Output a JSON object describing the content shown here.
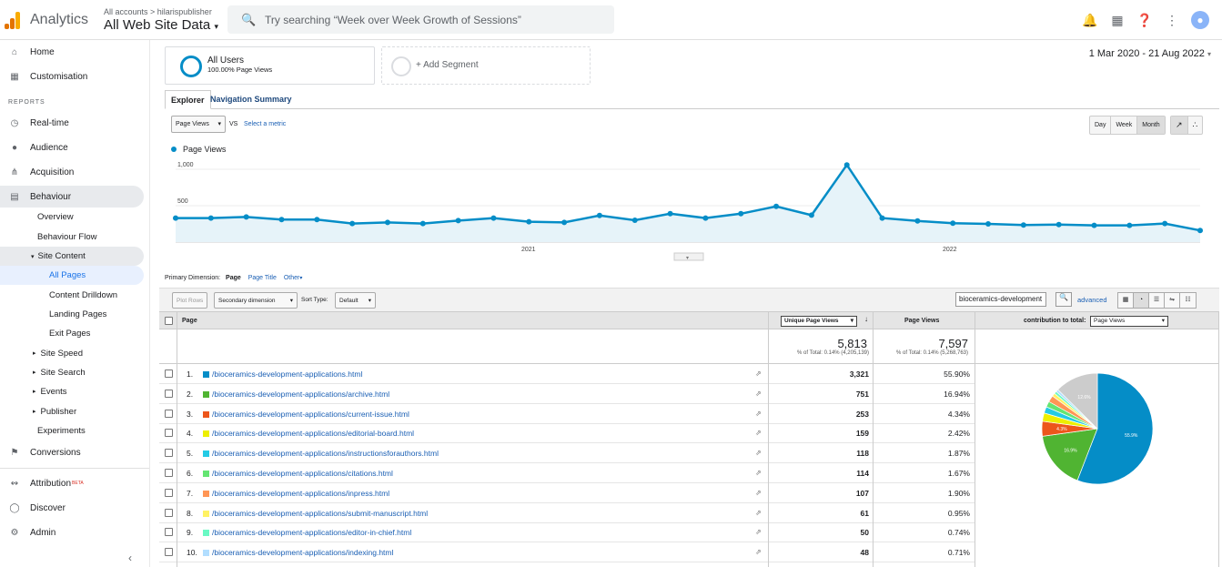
{
  "header": {
    "app_name": "Analytics",
    "account_path": "All accounts > hilarispublisher",
    "account_name": "All Web Site Data",
    "search_placeholder": "Try searching “Week over Week Growth of Sessions”"
  },
  "sidebar": {
    "home": "Home",
    "customisation": "Customisation",
    "reports_label": "REPORTS",
    "realtime": "Real-time",
    "audience": "Audience",
    "acquisition": "Acquisition",
    "behaviour": "Behaviour",
    "overview": "Overview",
    "behaviour_flow": "Behaviour Flow",
    "site_content": "Site Content",
    "all_pages": "All Pages",
    "content_drilldown": "Content Drilldown",
    "landing_pages": "Landing Pages",
    "exit_pages": "Exit Pages",
    "site_speed": "Site Speed",
    "site_search": "Site Search",
    "events": "Events",
    "publisher": "Publisher",
    "experiments": "Experiments",
    "conversions": "Conversions",
    "attribution": "Attribution",
    "beta": "BETA",
    "discover": "Discover",
    "admin": "Admin"
  },
  "segments": {
    "all_users": "All Users",
    "all_users_sub": "100.00% Page Views",
    "add": "+ Add Segment"
  },
  "date_range": "1 Mar 2020 - 21 Aug 2022",
  "tabs": {
    "explorer": "Explorer",
    "nav_summary": "Navigation Summary"
  },
  "controls": {
    "metric": "Page Views",
    "vs": "VS",
    "select_metric": "Select a metric",
    "day": "Day",
    "week": "Week",
    "month": "Month"
  },
  "chart_data": {
    "type": "line",
    "series": [
      {
        "name": "Page Views",
        "values": [
          330,
          330,
          345,
          310,
          310,
          255,
          270,
          255,
          295,
          330,
          280,
          270,
          365,
          300,
          390,
          330,
          390,
          490,
          370,
          1060,
          330,
          290,
          260,
          250,
          235,
          240,
          230,
          230,
          255,
          160
        ]
      }
    ],
    "y_ticks": [
      "1,000",
      "500"
    ],
    "x_ticks": [
      "2021",
      "2022"
    ],
    "ylim": [
      0,
      1100
    ],
    "color": "#058dc7"
  },
  "primary_dimension": {
    "label": "Primary Dimension:",
    "page": "Page",
    "page_title": "Page Title",
    "other": "Other"
  },
  "toolbar": {
    "plot_rows": "Plot Rows",
    "secondary": "Secondary dimension",
    "sort_label": "Sort Type:",
    "sort": "Default",
    "filter_value": "bioceramics-development",
    "advanced": "advanced"
  },
  "table": {
    "col_page": "Page",
    "col_unique": "Unique Page Views",
    "col_pv": "Page Views",
    "col_contrib": "contribution to total:",
    "contrib_select": "Page Views",
    "total_unique": "5,813",
    "total_unique_sub": "% of Total: 0.14% (4,205,139)",
    "total_pv": "7,597",
    "total_pv_sub": "% of Total: 0.14% (5,268,763)",
    "rows": [
      {
        "n": "1.",
        "page": "/bioceramics-development-applications.html",
        "u": "3,321",
        "p": "55.90%",
        "c": "#058dc7"
      },
      {
        "n": "2.",
        "page": "/bioceramics-development-applications/archive.html",
        "u": "751",
        "p": "16.94%",
        "c": "#50b432"
      },
      {
        "n": "3.",
        "page": "/bioceramics-development-applications/current-issue.html",
        "u": "253",
        "p": "4.34%",
        "c": "#ed561b"
      },
      {
        "n": "4.",
        "page": "/bioceramics-development-applications/editorial-board.html",
        "u": "159",
        "p": "2.42%",
        "c": "#edef00"
      },
      {
        "n": "5.",
        "page": "/bioceramics-development-applications/instructionsforauthors.html",
        "u": "118",
        "p": "1.87%",
        "c": "#24cbe5"
      },
      {
        "n": "6.",
        "page": "/bioceramics-development-applications/citations.html",
        "u": "114",
        "p": "1.67%",
        "c": "#64e572"
      },
      {
        "n": "7.",
        "page": "/bioceramics-development-applications/inpress.html",
        "u": "107",
        "p": "1.90%",
        "c": "#ff9655"
      },
      {
        "n": "8.",
        "page": "/bioceramics-development-applications/submit-manuscript.html",
        "u": "61",
        "p": "0.95%",
        "c": "#fff263"
      },
      {
        "n": "9.",
        "page": "/bioceramics-development-applications/editor-in-chief.html",
        "u": "50",
        "p": "0.74%",
        "c": "#6af9c4"
      },
      {
        "n": "10.",
        "page": "/bioceramics-development-applications/indexing.html",
        "u": "48",
        "p": "0.71%",
        "c": "#b2deff"
      }
    ],
    "pie": {
      "values": [
        55.9,
        16.94,
        4.34,
        2.42,
        1.87,
        1.67,
        1.9,
        0.95,
        0.74,
        0.71,
        12.6
      ],
      "colors": [
        "#058dc7",
        "#50b432",
        "#ed561b",
        "#edef00",
        "#24cbe5",
        "#64e572",
        "#ff9655",
        "#fff263",
        "#6af9c4",
        "#b2deff",
        "#cccccc"
      ],
      "labels": [
        "55.9%",
        "16.9%",
        "4.3%",
        "",
        "",
        "",
        "",
        "",
        "",
        "",
        "12.6%"
      ]
    }
  }
}
